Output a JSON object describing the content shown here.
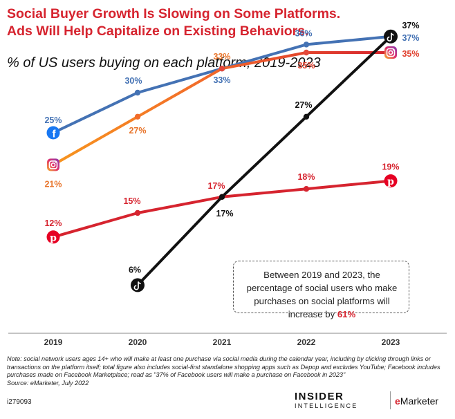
{
  "header": {
    "title_line1": "Social Buyer Growth Is Slowing on Some Platforms.",
    "title_line2": "Ads Will Help Capitalize on Existing Behaviors.",
    "subtitle": "% of US users buying on each platform, 2019-2023"
  },
  "chart_data": {
    "type": "line",
    "title": "Social Buyer Growth Is Slowing on Some Platforms. Ads Will Help Capitalize on Existing Behaviors.",
    "subtitle": "% of US users buying on each platform, 2019-2023",
    "categories": [
      "2019",
      "2020",
      "2021",
      "2022",
      "2023"
    ],
    "ylim": [
      0,
      40
    ],
    "grid": false,
    "series": [
      {
        "name": "Facebook",
        "key": "facebook",
        "color": "#4472b4",
        "icon": "facebook-icon",
        "x": [
          "2019",
          "2020",
          "2021",
          "2022",
          "2023"
        ],
        "values": [
          25,
          30,
          33,
          36,
          37
        ],
        "labels": [
          "25%",
          "30%",
          "33%",
          "36%",
          "37%"
        ]
      },
      {
        "name": "Instagram",
        "key": "instagram",
        "color": "#f7951f",
        "color_end": "#d6242f",
        "icon": "instagram-icon",
        "x": [
          "2019",
          "2020",
          "2021",
          "2022",
          "2023"
        ],
        "values": [
          21,
          27,
          33,
          35,
          35
        ],
        "labels": [
          "21%",
          "27%",
          "33%",
          "35%",
          "35%"
        ]
      },
      {
        "name": "Pinterest",
        "key": "pinterest",
        "color": "#d6242f",
        "icon": "pinterest-icon",
        "x": [
          "2019",
          "2020",
          "2021",
          "2022",
          "2023"
        ],
        "values": [
          12,
          15,
          17,
          18,
          19
        ],
        "labels": [
          "12%",
          "15%",
          "17%",
          "18%",
          "19%"
        ]
      },
      {
        "name": "TikTok",
        "key": "tiktok",
        "color": "#111111",
        "icon": "tiktok-icon",
        "x": [
          "2020",
          "2021",
          "2022",
          "2023"
        ],
        "values": [
          6,
          17,
          27,
          37
        ],
        "labels": [
          "6%",
          "17%",
          "27%",
          "37%"
        ]
      }
    ]
  },
  "callout": {
    "text_before": "Between 2019 and 2023, the percentage of social users who make purchases on social platforms will increase by ",
    "highlight": "61%"
  },
  "note": "Note: social network users ages 14+ who will make at least one purchase via social media during the calendar year, including by clicking through links or transactions on the platform itself; total figure also includes social-first standalone shopping apps such as Depop and excludes YouTube; Facebook includes purchases made on Facebook Marketplace; read as \"37% of Facebook users will make a purchase on Facebook in 2023\"",
  "source": "Source: eMarketer, July 2022",
  "chart_id": "i279093",
  "brand": {
    "insider": "INSIDER",
    "intelligence": "INTELLIGENCE",
    "emarketer_e": "e",
    "emarketer_rest": "Marketer"
  }
}
